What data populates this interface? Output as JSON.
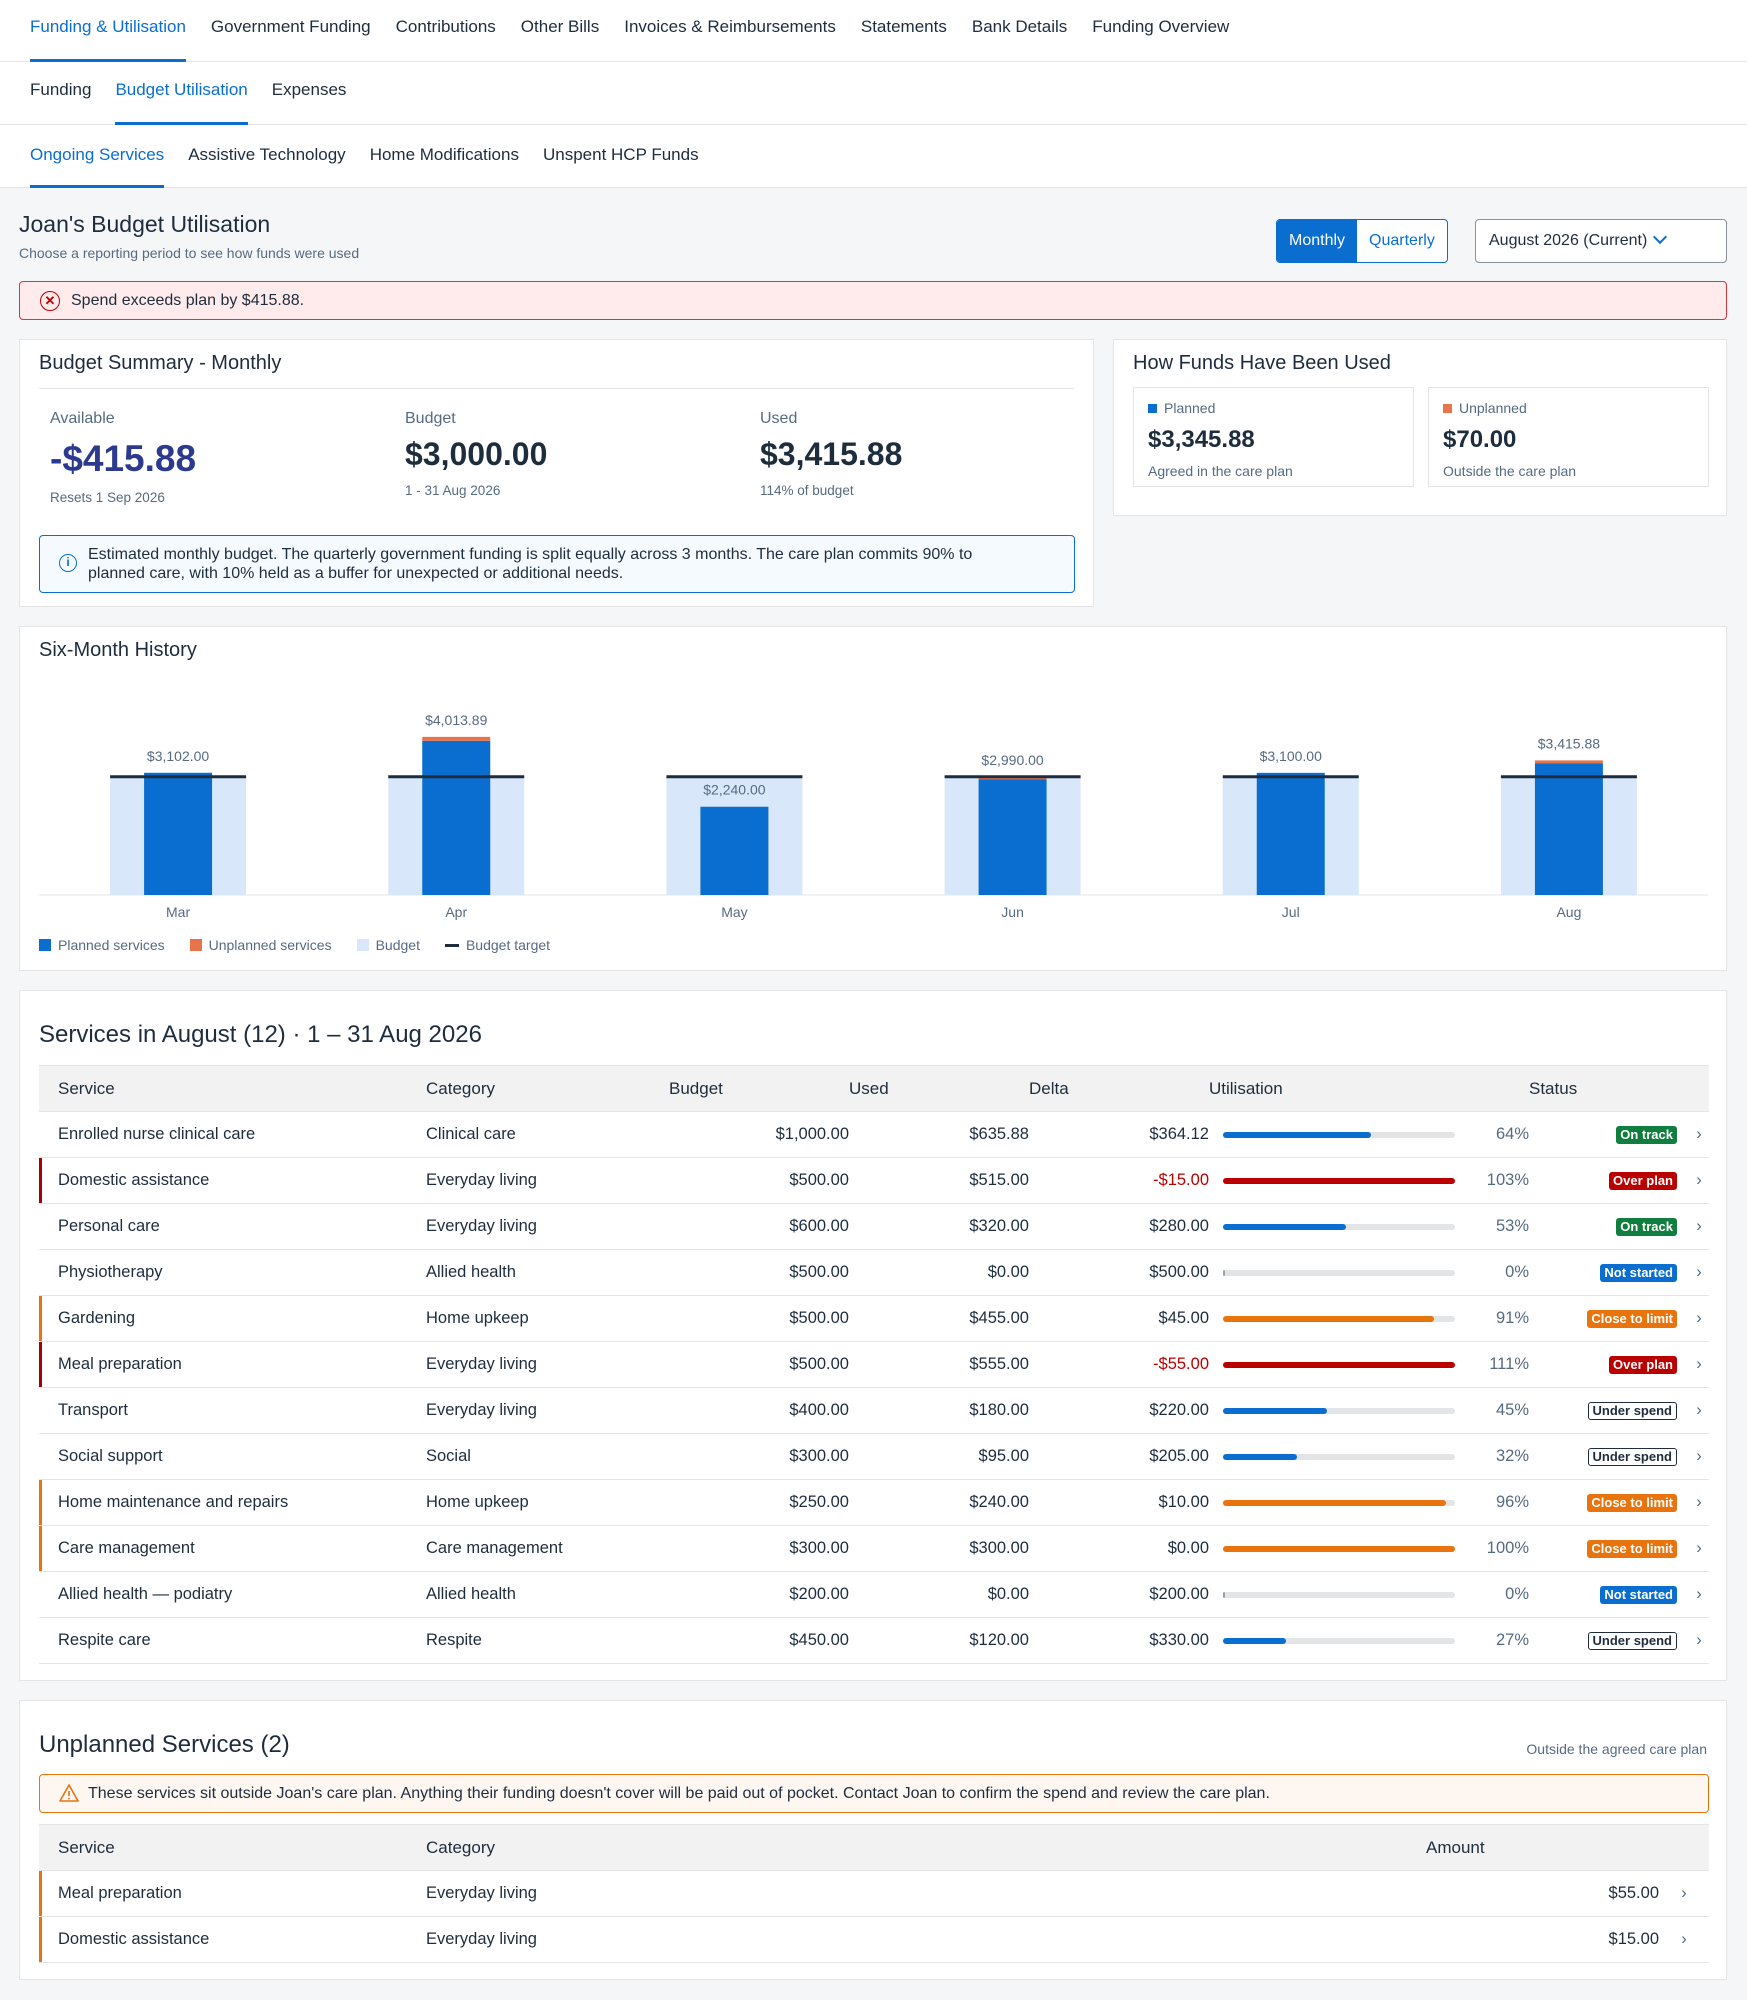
{
  "nav": {
    "primary": [
      "Funding & Utilisation",
      "Government Funding",
      "Contributions",
      "Other Bills",
      "Invoices & Reimbursements",
      "Statements",
      "Bank Details",
      "Funding Overview"
    ],
    "secondary": [
      "Funding",
      "Budget Utilisation",
      "Expenses"
    ],
    "tertiary": [
      "Ongoing Services",
      "Assistive Technology",
      "Home Modifications",
      "Unspent HCP Funds"
    ]
  },
  "header": {
    "title": "Joan's Budget Utilisation",
    "subtitle": "Choose a reporting period to see how funds were used",
    "toggle_monthly": "Monthly",
    "toggle_quarterly": "Quarterly",
    "selected_toggle": "Monthly",
    "period": "August 2026 (Current)"
  },
  "alert": {
    "text": "Spend exceeds plan by $415.88.",
    "icon": "error-circle-icon"
  },
  "summary": {
    "title": "Budget Summary - Monthly",
    "available": {
      "label": "Available",
      "value": "-$415.88",
      "note": "Resets 1 Sep 2026"
    },
    "budget": {
      "label": "Budget",
      "value": "$3,000.00",
      "note": "1 - 31 Aug 2026"
    },
    "used": {
      "label": "Used",
      "value": "$3,415.88",
      "note": "114% of budget"
    },
    "info": "Estimated monthly budget. The quarterly government funding is split equally across 3 months. The care plan commits 90% to planned care, with 10% held as a buffer for unexpected or additional needs."
  },
  "funds": {
    "title": "How Funds Have Been Used",
    "planned": {
      "label": "Planned",
      "value": "$3,345.88",
      "note": "Agreed in the care plan"
    },
    "unplanned": {
      "label": "Unplanned",
      "value": "$70.00",
      "note": "Outside the care plan"
    }
  },
  "history": {
    "title": "Six-Month History",
    "legend": [
      "Planned services",
      "Unplanned services",
      "Budget",
      "Budget target"
    ]
  },
  "chart_data": {
    "type": "bar",
    "categories": [
      "Mar",
      "Apr",
      "May",
      "Jun",
      "Jul",
      "Aug"
    ],
    "series": [
      {
        "name": "Planned services",
        "values": [
          3102.0,
          3913.89,
          2240.0,
          2940.0,
          3100.0,
          3345.88
        ]
      },
      {
        "name": "Unplanned services",
        "values": [
          0,
          100.0,
          0,
          50.0,
          0,
          70.0
        ]
      },
      {
        "name": "Budget",
        "values": [
          3000,
          3000,
          3000,
          3000,
          3000,
          3000
        ]
      },
      {
        "name": "Budget target",
        "values": [
          3000,
          3000,
          3000,
          3000,
          3000,
          3000
        ]
      }
    ],
    "totals": [
      "$3,102.00",
      "$4,013.89",
      "$2,240.00",
      "$2,990.00",
      "$3,100.00",
      "$3,415.88"
    ],
    "ylim": [
      0,
      4200
    ],
    "legend_position": "bottom-left",
    "colors": {
      "planned": "#0a6ed1",
      "unplanned": "#e9734a",
      "budget": "#d8e8fa",
      "target": "#1d2d3e"
    }
  },
  "services": {
    "title": "Services in August (12) · 1 – 31 Aug 2026",
    "columns": [
      "Service",
      "Category",
      "Budget",
      "Used",
      "Delta",
      "Utilisation",
      "Status"
    ],
    "rows": [
      {
        "service": "Enrolled nurse clinical care",
        "category": "Clinical care",
        "budget": "$1,000.00",
        "used": "$635.88",
        "delta": "$364.12",
        "pct": 64,
        "pct_label": "64%",
        "status": "On track",
        "tone": "green"
      },
      {
        "service": "Domestic assistance",
        "category": "Everyday living",
        "budget": "$500.00",
        "used": "$515.00",
        "delta": "-$15.00",
        "pct": 103,
        "pct_label": "103%",
        "status": "Over plan",
        "tone": "red"
      },
      {
        "service": "Personal care",
        "category": "Everyday living",
        "budget": "$600.00",
        "used": "$320.00",
        "delta": "$280.00",
        "pct": 53,
        "pct_label": "53%",
        "status": "On track",
        "tone": "green"
      },
      {
        "service": "Physiotherapy",
        "category": "Allied health",
        "budget": "$500.00",
        "used": "$0.00",
        "delta": "$500.00",
        "pct": 0,
        "pct_label": "0%",
        "status": "Not started",
        "tone": "blue"
      },
      {
        "service": "Gardening",
        "category": "Home upkeep",
        "budget": "$500.00",
        "used": "$455.00",
        "delta": "$45.00",
        "pct": 91,
        "pct_label": "91%",
        "status": "Close to limit",
        "tone": "orange"
      },
      {
        "service": "Meal preparation",
        "category": "Everyday living",
        "budget": "$500.00",
        "used": "$555.00",
        "delta": "-$55.00",
        "pct": 111,
        "pct_label": "111%",
        "status": "Over plan",
        "tone": "red"
      },
      {
        "service": "Transport",
        "category": "Everyday living",
        "budget": "$400.00",
        "used": "$180.00",
        "delta": "$220.00",
        "pct": 45,
        "pct_label": "45%",
        "status": "Under spend",
        "tone": "outline"
      },
      {
        "service": "Social support",
        "category": "Social",
        "budget": "$300.00",
        "used": "$95.00",
        "delta": "$205.00",
        "pct": 32,
        "pct_label": "32%",
        "status": "Under spend",
        "tone": "outline"
      },
      {
        "service": "Home maintenance and repairs",
        "category": "Home upkeep",
        "budget": "$250.00",
        "used": "$240.00",
        "delta": "$10.00",
        "pct": 96,
        "pct_label": "96%",
        "status": "Close to limit",
        "tone": "orange"
      },
      {
        "service": "Care management",
        "category": "Care management",
        "budget": "$300.00",
        "used": "$300.00",
        "delta": "$0.00",
        "pct": 100,
        "pct_label": "100%",
        "status": "Close to limit",
        "tone": "orange"
      },
      {
        "service": "Allied health — podiatry",
        "category": "Allied health",
        "budget": "$200.00",
        "used": "$0.00",
        "delta": "$200.00",
        "pct": 0,
        "pct_label": "0%",
        "status": "Not started",
        "tone": "blue"
      },
      {
        "service": "Respite care",
        "category": "Respite",
        "budget": "$450.00",
        "used": "$120.00",
        "delta": "$330.00",
        "pct": 27,
        "pct_label": "27%",
        "status": "Under spend",
        "tone": "outline"
      }
    ]
  },
  "unplanned": {
    "title": "Unplanned Services (2)",
    "hint": "Outside the agreed care plan",
    "warning": "These services sit outside Joan's care plan. Anything their funding doesn't cover will be paid out of pocket. Contact Joan to confirm the spend and review the care plan.",
    "columns": [
      "Service",
      "Category",
      "Amount"
    ],
    "rows": [
      {
        "service": "Meal preparation",
        "category": "Everyday living",
        "amount": "$55.00"
      },
      {
        "service": "Domestic assistance",
        "category": "Everyday living",
        "amount": "$15.00"
      }
    ]
  }
}
